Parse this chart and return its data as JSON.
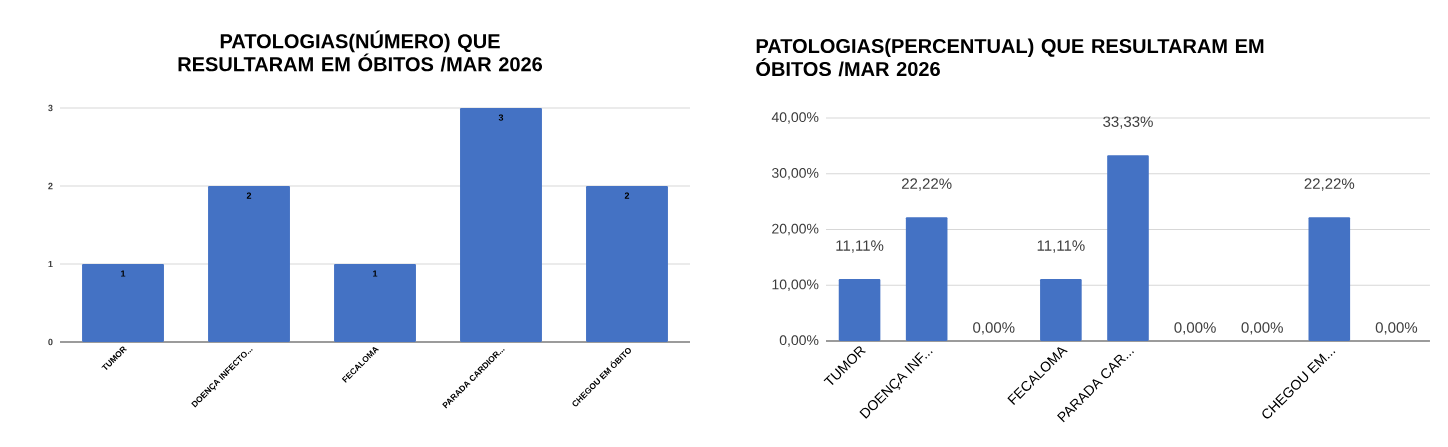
{
  "chart_data": [
    {
      "type": "bar",
      "title": "PATOLOGIAS(NÚMERO) QUE RESULTARAM EM ÓBITOS /MAR 2026",
      "categories": [
        "TUMOR",
        "DOENÇA INFECTO...",
        "FECALOMA",
        "PARADA CARDIOR...",
        "CHEGOU EM ÓBITO"
      ],
      "values": [
        1,
        2,
        1,
        3,
        2
      ],
      "color": "#4472c4",
      "ylim": [
        0,
        3
      ],
      "yticks": [
        0,
        1,
        2,
        3
      ],
      "grid": "y",
      "data_labels": true
    },
    {
      "type": "bar",
      "title": "PATOLOGIAS(PERCENTUAL) QUE RESULTARAM EM ÓBITOS /MAR 2026",
      "categories": [
        "TUMOR",
        "DOENÇA INF...",
        null,
        "FECALOMA",
        "PARADA CAR...",
        null,
        null,
        "CHEGOU EM...",
        null
      ],
      "values": [
        11.11,
        22.22,
        0,
        11.11,
        33.33,
        0,
        0,
        22.22,
        0
      ],
      "color": "#4472c4",
      "ylim": [
        0,
        40
      ],
      "yticks": [
        {
          "value": 0,
          "label": "0,00%"
        },
        {
          "value": 10,
          "label": "10,00%"
        },
        {
          "value": 20,
          "label": "20,00%"
        },
        {
          "value": 30,
          "label": "30,00%"
        },
        {
          "value": 40,
          "label": "40,00%"
        }
      ],
      "grid": "y",
      "value_labels": [
        "11,11%",
        "22,22%",
        "0,00%",
        "11,11%",
        "33,33%",
        "0,00%",
        "0,00%",
        "22,22%",
        "0,00%"
      ]
    }
  ]
}
